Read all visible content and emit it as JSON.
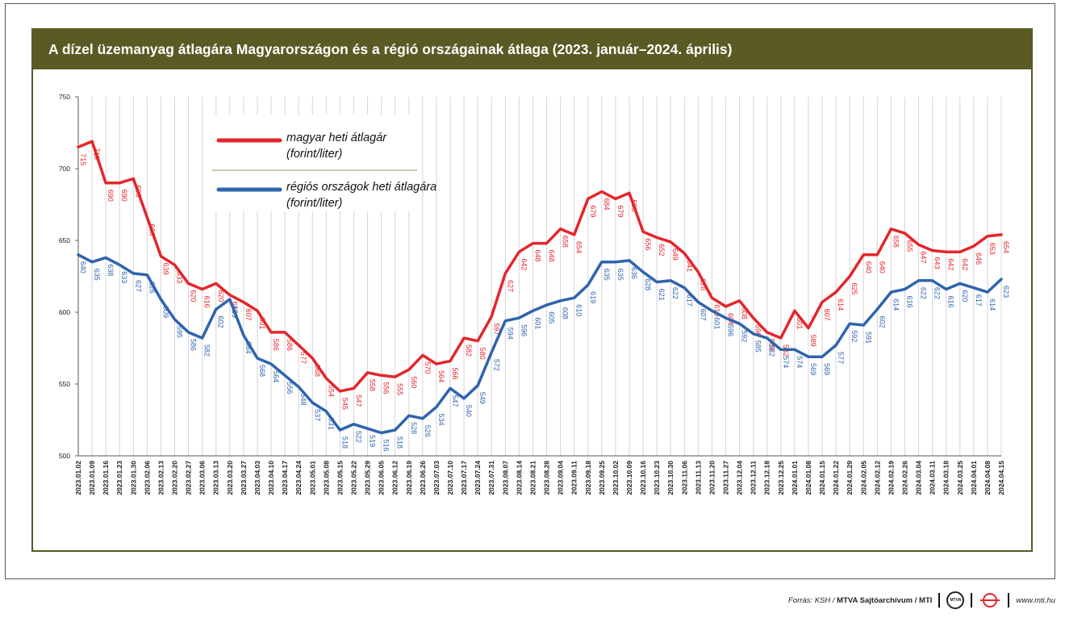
{
  "chart_data": {
    "type": "line",
    "title": "A dízel üzemanyag átlagára Magyarországon és a régió országainak átlaga (2023. január–2024. április)",
    "xlabel": "",
    "ylabel": "",
    "ylim": [
      500,
      750
    ],
    "yticks": [
      500,
      550,
      600,
      650,
      700,
      750
    ],
    "grid": "vertical",
    "legend_position": "top-left",
    "categories": [
      "2023.01.02",
      "2023.01.09",
      "2023.01.16",
      "2023.01.23",
      "2023.01.30",
      "2023.02.06",
      "2023.02.13",
      "2023.02.20",
      "2023.02.27",
      "2023.03.06",
      "2023.03.13",
      "2023.03.20",
      "2023.03.27",
      "2023.04.03",
      "2023.04.10",
      "2023.04.17",
      "2023.04.24",
      "2023.05.01",
      "2023.05.08",
      "2023.05.15",
      "2023.05.22",
      "2023.05.29",
      "2023.06.05",
      "2023.06.12",
      "2023.06.19",
      "2023.06.26",
      "2023.07.03",
      "2023.07.10",
      "2023.07.17",
      "2023.07.24",
      "2023.07.31",
      "2023.08.07",
      "2023.08.14",
      "2023.08.21",
      "2023.08.28",
      "2023.09.04",
      "2023.09.11",
      "2023.09.18",
      "2023.09.25",
      "2023.10.02",
      "2023.10.09",
      "2023.10.16",
      "2023.10.23",
      "2023.10.30",
      "2023.11.06",
      "2023.11.13",
      "2023.11.20",
      "2023.11.27",
      "2023.12.04",
      "2023.12.11",
      "2023.12.18",
      "2023.12.25",
      "2024.01.01",
      "2024.01.08",
      "2024.01.15",
      "2024.01.22",
      "2024.01.29",
      "2024.02.05",
      "2024.02.12",
      "2024.02.19",
      "2024.02.26",
      "2024.03.04",
      "2024.03.11",
      "2024.03.18",
      "2024.03.25",
      "2024.04.01",
      "2024.04.08",
      "2024.04.15"
    ],
    "series": [
      {
        "name": "magyar heti átlagár",
        "unit": "(forint/liter)",
        "color": "#e3262b",
        "values": [
          715,
          719,
          690,
          690,
          693,
          666,
          639,
          633,
          620,
          616,
          620,
          612,
          607,
          601,
          586,
          586,
          577,
          568,
          554,
          545,
          547,
          558,
          556,
          555,
          560,
          570,
          564,
          566,
          582,
          580,
          597,
          627,
          642,
          648,
          648,
          658,
          654,
          679,
          684,
          679,
          683,
          656,
          652,
          649,
          641,
          628,
          610,
          604,
          608,
          596,
          586,
          582,
          601,
          589,
          607,
          614,
          625,
          640,
          640,
          658,
          655,
          647,
          643,
          642,
          642,
          646,
          653,
          654
        ]
      },
      {
        "name": "régiós országok heti átlagára",
        "unit": "(forint/liter)",
        "color": "#2f64ad",
        "values": [
          640,
          635,
          638,
          633,
          627,
          626,
          609,
          595,
          586,
          582,
          602,
          609,
          584,
          568,
          564,
          556,
          548,
          537,
          531,
          518,
          522,
          519,
          516,
          518,
          528,
          526,
          534,
          547,
          540,
          549,
          572,
          594,
          596,
          601,
          605,
          608,
          610,
          619,
          635,
          635,
          636,
          628,
          621,
          622,
          617,
          607,
          601,
          596,
          592,
          585,
          582,
          574,
          574,
          569,
          569,
          577,
          592,
          591,
          602,
          614,
          616,
          622,
          622,
          616,
          620,
          617,
          614,
          623
        ]
      }
    ]
  },
  "footer": {
    "source_prefix": "Forrás: KSH /",
    "source_bold": "MTVA Sajtóarchívum / MTI",
    "logo_text": "MTVA",
    "website": "www.mti.hu"
  }
}
